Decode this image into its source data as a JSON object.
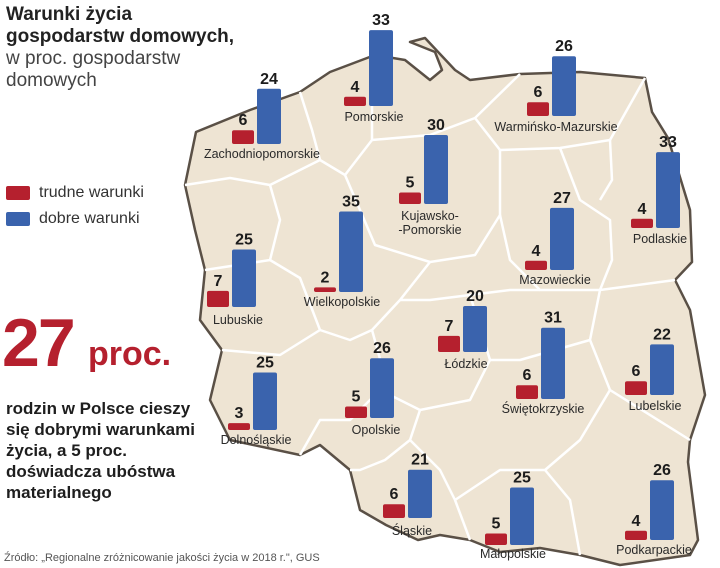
{
  "title": {
    "main": "Warunki życia gospodarstw domowych,",
    "sub": "w proc. gospodarstw domowych"
  },
  "legend": [
    {
      "label": "trudne warunki",
      "color": "#b5202e"
    },
    {
      "label": "dobre warunki",
      "color": "#3a63ad"
    }
  ],
  "highlight": {
    "value": "27",
    "unit": "proc.",
    "text": "rodzin w Polsce cieszy się dobrymi warunkami życia, a 5 proc. doświadcza ubóstwa materialnego"
  },
  "source": "Źródło: „Regionalne zróżnicowanie jakości życia w 2018 r.\", GUS",
  "colors": {
    "map_fill": "#eee4d3",
    "map_border": "#5a5046",
    "inner_border": "#ffffff"
  },
  "chart_data": {
    "type": "bar",
    "series_names": [
      "trudne warunki",
      "dobre warunki"
    ],
    "unit": "proc.",
    "regions": [
      {
        "name": "Zachodniopomorskie",
        "trudne": 6,
        "dobre": 24
      },
      {
        "name": "Pomorskie",
        "trudne": 4,
        "dobre": 33
      },
      {
        "name": "Warmińsko-Mazurskie",
        "trudne": 6,
        "dobre": 26
      },
      {
        "name": "Kujawsko--Pomorskie",
        "trudne": 5,
        "dobre": 30
      },
      {
        "name": "Podlaskie",
        "trudne": 4,
        "dobre": 33
      },
      {
        "name": "Lubuskie",
        "trudne": 7,
        "dobre": 25
      },
      {
        "name": "Wielkopolskie",
        "trudne": 2,
        "dobre": 35
      },
      {
        "name": "Mazowieckie",
        "trudne": 4,
        "dobre": 27
      },
      {
        "name": "Łódzkie",
        "trudne": 7,
        "dobre": 20
      },
      {
        "name": "Dolnośląskie",
        "trudne": 3,
        "dobre": 25
      },
      {
        "name": "Opolskie",
        "trudne": 5,
        "dobre": 26
      },
      {
        "name": "Świętokrzyskie",
        "trudne": 6,
        "dobre": 31
      },
      {
        "name": "Lubelskie",
        "trudne": 6,
        "dobre": 22
      },
      {
        "name": "Śląskie",
        "trudne": 6,
        "dobre": 21
      },
      {
        "name": "Małopolskie",
        "trudne": 5,
        "dobre": 25
      },
      {
        "name": "Podkarpackie",
        "trudne": 4,
        "dobre": 26
      }
    ]
  }
}
